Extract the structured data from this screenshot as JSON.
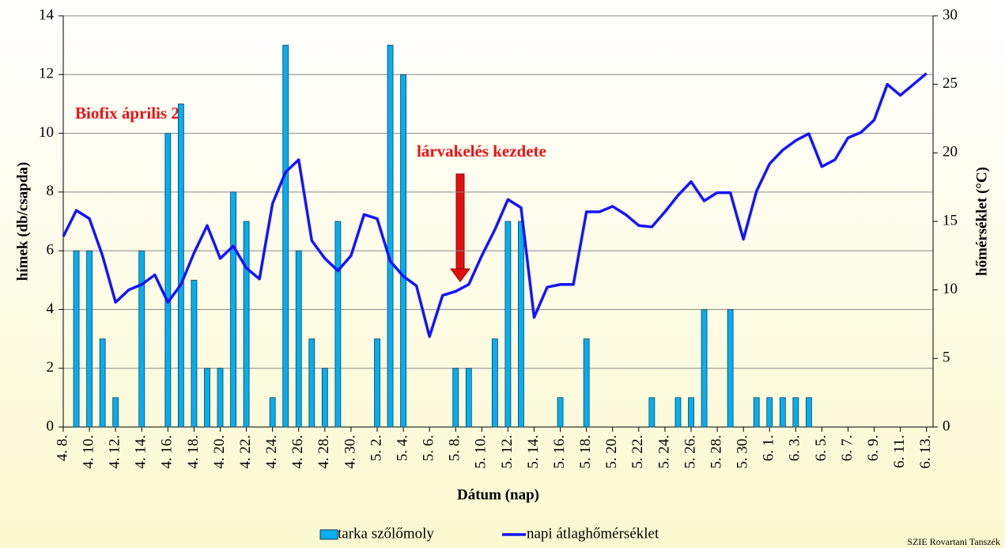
{
  "chart_data": {
    "type": "bar_line",
    "ylabel": "hímek (db/csapda)",
    "y2label": "hőmérséklet (°C)",
    "xlabel": "Dátum (nap)",
    "annotations": [
      "Biofix április 2.",
      "lárvakelés  kezdete"
    ],
    "footer": "SZIE Rovartani Tanszék",
    "categories": [
      "4. 8.",
      null,
      "4. 10.",
      null,
      "4. 12.",
      null,
      "4. 14.",
      null,
      "4. 16.",
      null,
      "4. 18.",
      null,
      "4. 20.",
      null,
      "4. 22.",
      null,
      "4. 24.",
      null,
      "4. 26.",
      null,
      "4. 28.",
      null,
      "4. 30.",
      null,
      "5. 2.",
      null,
      "5. 4.",
      null,
      "5. 6.",
      null,
      "5. 8.",
      null,
      "5. 10.",
      null,
      "5. 12.",
      null,
      "5. 14.",
      null,
      "5. 16.",
      null,
      "5. 18.",
      null,
      "5. 20.",
      null,
      "5. 22.",
      null,
      "5. 24.",
      null,
      "5. 26.",
      null,
      "5. 28.",
      null,
      "5. 30.",
      null,
      "6. 1.",
      null,
      "6. 3.",
      null,
      "6. 5.",
      null,
      "6. 7.",
      null,
      "6. 9.",
      null,
      "6. 11.",
      null,
      "6. 13."
    ],
    "series": [
      {
        "name": "tarka szőlőmoly",
        "type": "bar",
        "color": "#00b0f0",
        "values": [
          0,
          6,
          6,
          3,
          1,
          0,
          6,
          0,
          10,
          11,
          5,
          2,
          2,
          8,
          7,
          0,
          1,
          13,
          6,
          3,
          2,
          7,
          0,
          0,
          3,
          13,
          12,
          0,
          0,
          0,
          2,
          2,
          0,
          3,
          7,
          7,
          0,
          0,
          1,
          0,
          3,
          0,
          0,
          0,
          0,
          1,
          0,
          1,
          1,
          4,
          0,
          4,
          0,
          1,
          1,
          1,
          1,
          1,
          0,
          0,
          0,
          0,
          0,
          0,
          0,
          0,
          0
        ]
      },
      {
        "name": "napi átlaghőmérséklet",
        "type": "line",
        "axis": "y2",
        "color": "#1414ff",
        "values": [
          13.9,
          15.8,
          15.2,
          12.5,
          9.1,
          10,
          10.4,
          11.1,
          9.1,
          10.4,
          12.7,
          14.7,
          12.3,
          13.2,
          11.6,
          10.8,
          16.3,
          18.6,
          19.5,
          13.6,
          12.3,
          11.4,
          12.5,
          15.5,
          15.2,
          12.1,
          11,
          10.3,
          6.6,
          9.6,
          9.9,
          10.4,
          12.5,
          14.4,
          16.6,
          16,
          8,
          10.2,
          10.4,
          10.4,
          15.7,
          15.7,
          16.1,
          15.5,
          14.7,
          14.6,
          15.7,
          16.9,
          17.9,
          16.5,
          17.1,
          17.1,
          13.7,
          17.2,
          19.2,
          20.2,
          20.9,
          21.4,
          19,
          19.5,
          21.1,
          21.5,
          22.4,
          25,
          24.2,
          25,
          25.8
        ]
      }
    ],
    "ylim": [
      0,
      14
    ],
    "yticks": [
      0,
      2,
      4,
      6,
      8,
      10,
      12,
      14
    ],
    "y2lim": [
      0,
      30
    ],
    "y2ticks": [
      0,
      5,
      10,
      15,
      20,
      25,
      30
    ],
    "grid": true,
    "legend": "bottom"
  }
}
